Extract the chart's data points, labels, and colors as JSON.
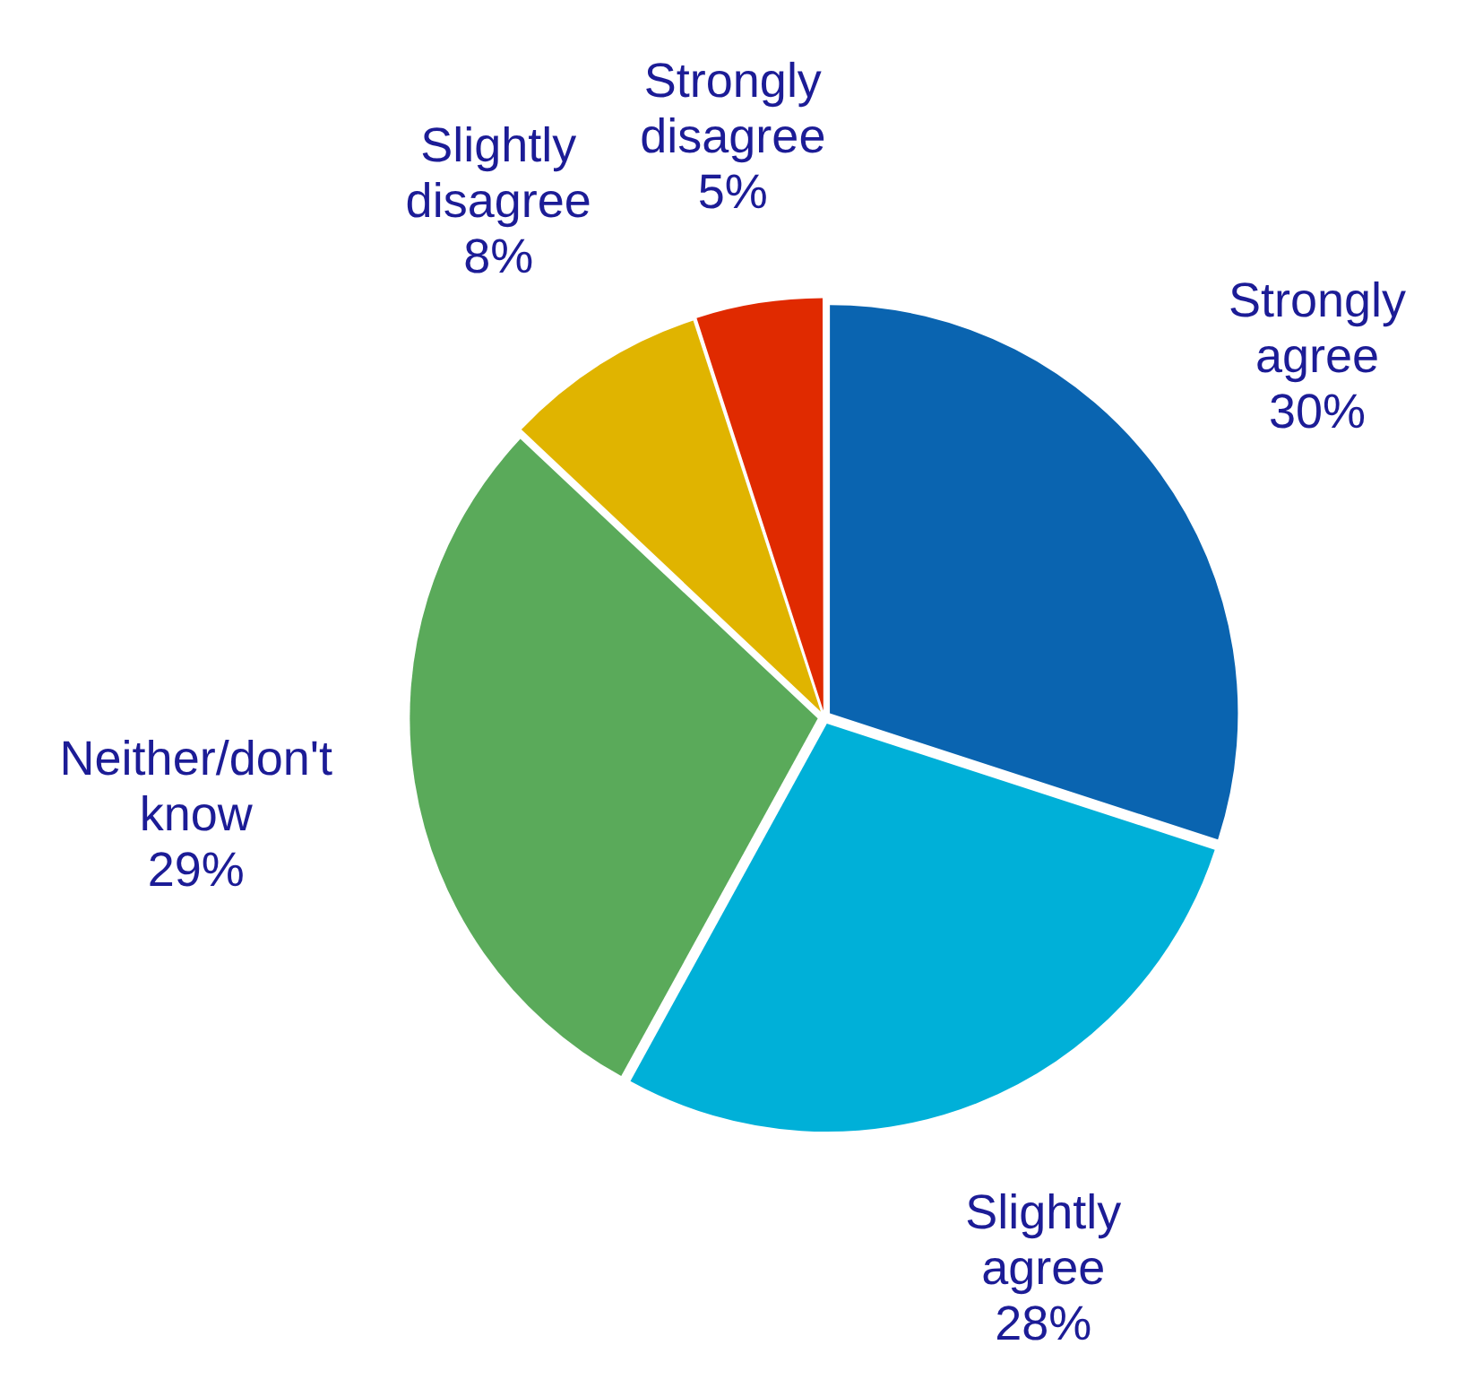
{
  "chart_data": {
    "type": "pie",
    "categories": [
      "Strongly agree",
      "Slightly agree",
      "Neither/don't know",
      "Slightly disagree",
      "Strongly disagree"
    ],
    "values": [
      30,
      28,
      29,
      8,
      5
    ],
    "value_labels": [
      "30%",
      "28%",
      "29%",
      "8%",
      "5%"
    ],
    "colors": [
      "#0a64b0",
      "#00b0d8",
      "#5aaa5a",
      "#e0b400",
      "#e02a00"
    ],
    "legend": false
  }
}
